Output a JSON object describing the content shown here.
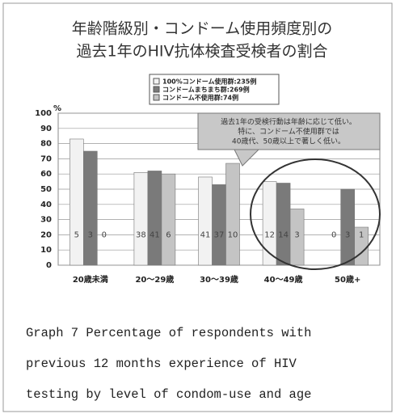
{
  "chart_data": {
    "type": "bar",
    "title": [
      "年齢階級別・コンドーム使用頻度別の",
      "過去1年のHIV抗体検査受検者の割合"
    ],
    "y_unit": "%",
    "categories": [
      "20歳未満",
      "20～29歳",
      "30～39歳",
      "40～49歳",
      "50歳+"
    ],
    "series": [
      {
        "name": "100%コンドーム使用群:235例",
        "color": "#f2f2f2",
        "values": [
          83,
          61,
          58,
          55,
          0
        ],
        "counts": [
          5,
          38,
          41,
          12,
          0
        ]
      },
      {
        "name": "コンドームまちまち群:269例",
        "color": "#7a7a7a",
        "values": [
          75,
          62,
          53,
          54,
          50
        ],
        "counts": [
          3,
          41,
          37,
          14,
          3
        ]
      },
      {
        "name": "コンドーム不使用群:74例",
        "color": "#c4c4c4",
        "values": [
          0,
          60,
          67,
          37,
          25
        ],
        "counts": [
          0,
          6,
          10,
          3,
          1
        ]
      }
    ],
    "ylim": [
      0,
      100
    ],
    "yticks": [
      0,
      10,
      20,
      30,
      40,
      50,
      60,
      70,
      80,
      90,
      100
    ],
    "grid": true,
    "annotation": [
      "過去1年の受検行動は年齢に応じて低い。",
      "特に、コンドーム不使用群では",
      "40歳代、50歳以上で著しく低い。"
    ],
    "caption": [
      "Graph 7 Percentage of respondents with",
      "previous 12 months experience of HIV",
      "testing by level of condom-use and age"
    ]
  }
}
